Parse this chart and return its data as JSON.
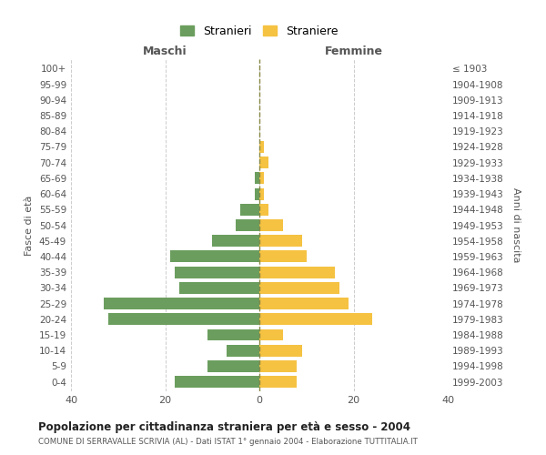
{
  "age_groups": [
    "0-4",
    "5-9",
    "10-14",
    "15-19",
    "20-24",
    "25-29",
    "30-34",
    "35-39",
    "40-44",
    "45-49",
    "50-54",
    "55-59",
    "60-64",
    "65-69",
    "70-74",
    "75-79",
    "80-84",
    "85-89",
    "90-94",
    "95-99",
    "100+"
  ],
  "birth_years": [
    "1999-2003",
    "1994-1998",
    "1989-1993",
    "1984-1988",
    "1979-1983",
    "1974-1978",
    "1969-1973",
    "1964-1968",
    "1959-1963",
    "1954-1958",
    "1949-1953",
    "1944-1948",
    "1939-1943",
    "1934-1938",
    "1929-1933",
    "1924-1928",
    "1919-1923",
    "1914-1918",
    "1909-1913",
    "1904-1908",
    "≤ 1903"
  ],
  "maschi": [
    18,
    11,
    7,
    11,
    32,
    33,
    17,
    18,
    19,
    10,
    5,
    4,
    1,
    1,
    0,
    0,
    0,
    0,
    0,
    0,
    0
  ],
  "femmine": [
    8,
    8,
    9,
    5,
    24,
    19,
    17,
    16,
    10,
    9,
    5,
    2,
    1,
    1,
    2,
    1,
    0,
    0,
    0,
    0,
    0
  ],
  "color_maschi": "#6b9e5e",
  "color_femmine": "#f5c242",
  "title": "Popolazione per cittadinanza straniera per età e sesso - 2004",
  "subtitle": "COMUNE DI SERRAVALLE SCRIVIA (AL) - Dati ISTAT 1° gennaio 2004 - Elaborazione TUTTITALIA.IT",
  "xlabel_left": "Maschi",
  "xlabel_right": "Femmine",
  "ylabel_left": "Fasce di età",
  "ylabel_right": "Anni di nascita",
  "xlim": 40,
  "legend_stranieri": "Stranieri",
  "legend_straniere": "Straniere",
  "background_color": "#ffffff",
  "grid_color": "#cccccc"
}
